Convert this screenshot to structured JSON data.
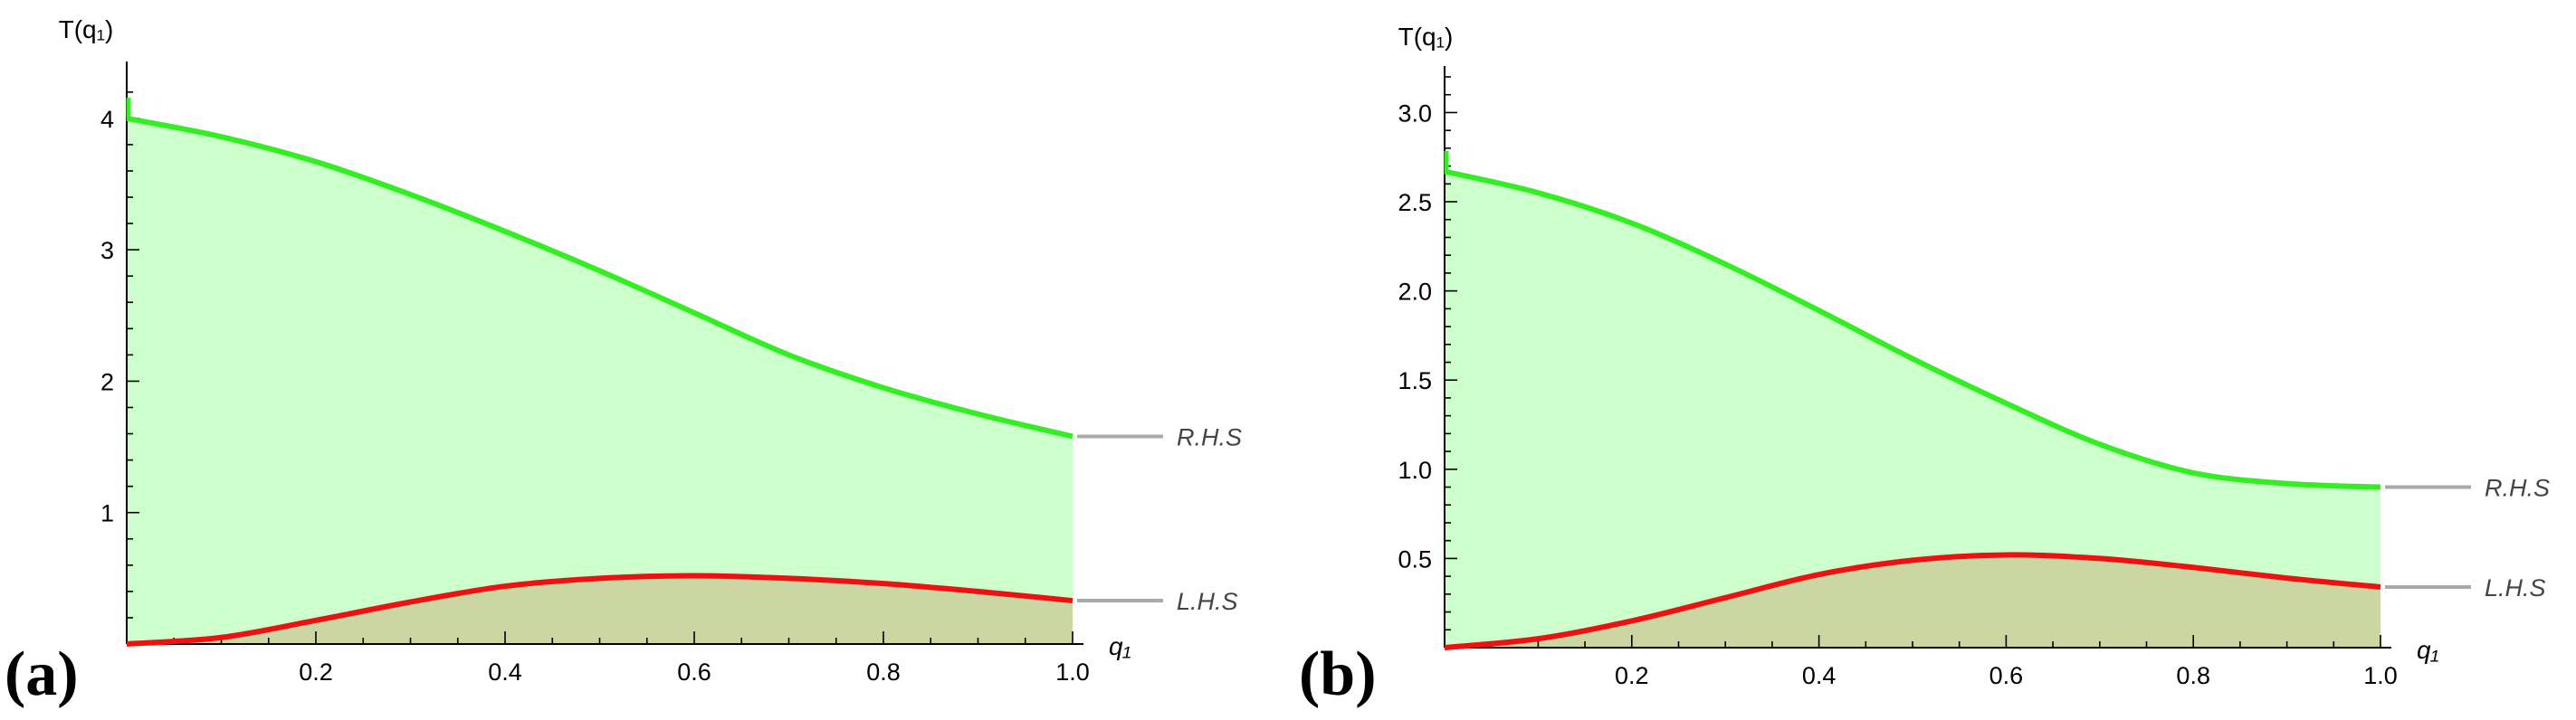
{
  "chart_data": [
    {
      "type": "area",
      "panel_label": "(a)",
      "ylabel": "T(q₁)",
      "xlabel": "q₁",
      "xlim": [
        0,
        1
      ],
      "ylim": [
        0,
        4.35
      ],
      "x_ticks": [
        "0.2",
        "0.4",
        "0.6",
        "0.8",
        "1.0"
      ],
      "y_ticks": [
        "1",
        "2",
        "3",
        "4"
      ],
      "x": [
        0,
        0.1,
        0.2,
        0.3,
        0.4,
        0.5,
        0.6,
        0.7,
        0.8,
        0.9,
        1.0
      ],
      "series": [
        {
          "name": "R.H.S",
          "color": "#33ee22",
          "fill": "#ccffcc",
          "values": [
            4.0,
            3.86,
            3.67,
            3.42,
            3.14,
            2.84,
            2.52,
            2.2,
            1.95,
            1.75,
            1.58
          ]
        },
        {
          "name": "L.H.S",
          "color": "#ee1111",
          "fill": "#ccd6a3",
          "values": [
            0.0,
            0.05,
            0.18,
            0.32,
            0.44,
            0.5,
            0.52,
            0.5,
            0.46,
            0.4,
            0.33
          ]
        }
      ],
      "legend_placement": "right"
    },
    {
      "type": "area",
      "panel_label": "(b)",
      "ylabel": "T(q₁)",
      "xlabel": "q₁",
      "xlim": [
        0,
        1
      ],
      "ylim": [
        0,
        3.2
      ],
      "x_ticks": [
        "0.2",
        "0.4",
        "0.6",
        "0.8",
        "1.0"
      ],
      "y_ticks": [
        "0.5",
        "1.0",
        "1.5",
        "2.0",
        "2.5",
        "3.0"
      ],
      "x": [
        0,
        0.1,
        0.2,
        0.3,
        0.4,
        0.5,
        0.6,
        0.7,
        0.8,
        0.9,
        1.0
      ],
      "series": [
        {
          "name": "R.H.S",
          "color": "#33ee22",
          "fill": "#ccffcc",
          "values": [
            2.67,
            2.55,
            2.38,
            2.15,
            1.89,
            1.62,
            1.37,
            1.14,
            0.98,
            0.92,
            0.9
          ]
        },
        {
          "name": "L.H.S",
          "color": "#ee1111",
          "fill": "#ccd6a3",
          "values": [
            0.0,
            0.05,
            0.15,
            0.28,
            0.41,
            0.49,
            0.52,
            0.5,
            0.45,
            0.39,
            0.34
          ]
        }
      ],
      "legend_placement": "right"
    }
  ]
}
